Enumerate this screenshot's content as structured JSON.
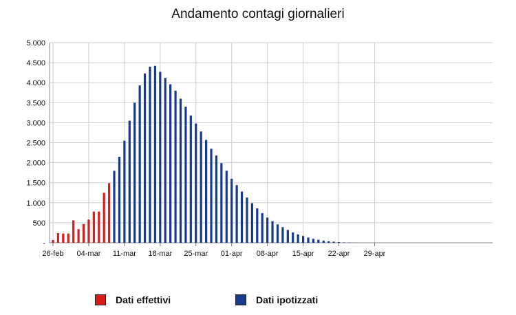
{
  "chart_data": {
    "type": "bar",
    "title": "Andamento contagi giornalieri",
    "xlabel": "",
    "ylabel": "",
    "ylim": [
      0,
      5000
    ],
    "y_ticks": [
      0,
      500,
      1000,
      1500,
      2000,
      2500,
      3000,
      3500,
      4000,
      4500,
      5000
    ],
    "y_tick_labels": [
      "-",
      "500",
      "1.000",
      "1.500",
      "2.000",
      "2.500",
      "3.000",
      "3.500",
      "4.000",
      "4.500",
      "5.000"
    ],
    "x_ticks": [
      "26-feb",
      "04-mar",
      "11-mar",
      "18-mar",
      "25-mar",
      "01-apr",
      "08-apr",
      "15-apr",
      "22-apr",
      "29-apr"
    ],
    "grid": true,
    "legend_position": "bottom",
    "series": [
      {
        "name": "Dati effettivi",
        "color": "#d81c1c",
        "start_date": "26-feb",
        "values": [
          70,
          240,
          230,
          230,
          560,
          340,
          470,
          580,
          780,
          780,
          1250,
          1490
        ]
      },
      {
        "name": "Dati ipotizzati",
        "color": "#173a8e",
        "start_date": "09-mar",
        "values": [
          1800,
          2150,
          2550,
          3050,
          3500,
          3930,
          4230,
          4400,
          4420,
          4270,
          4120,
          3960,
          3800,
          3600,
          3400,
          3180,
          2980,
          2780,
          2570,
          2350,
          2180,
          1990,
          1800,
          1600,
          1440,
          1280,
          1130,
          990,
          860,
          740,
          630,
          540,
          460,
          390,
          320,
          260,
          210,
          170,
          130,
          100,
          75,
          55,
          40,
          28,
          18,
          10,
          5,
          3,
          0
        ]
      }
    ]
  }
}
